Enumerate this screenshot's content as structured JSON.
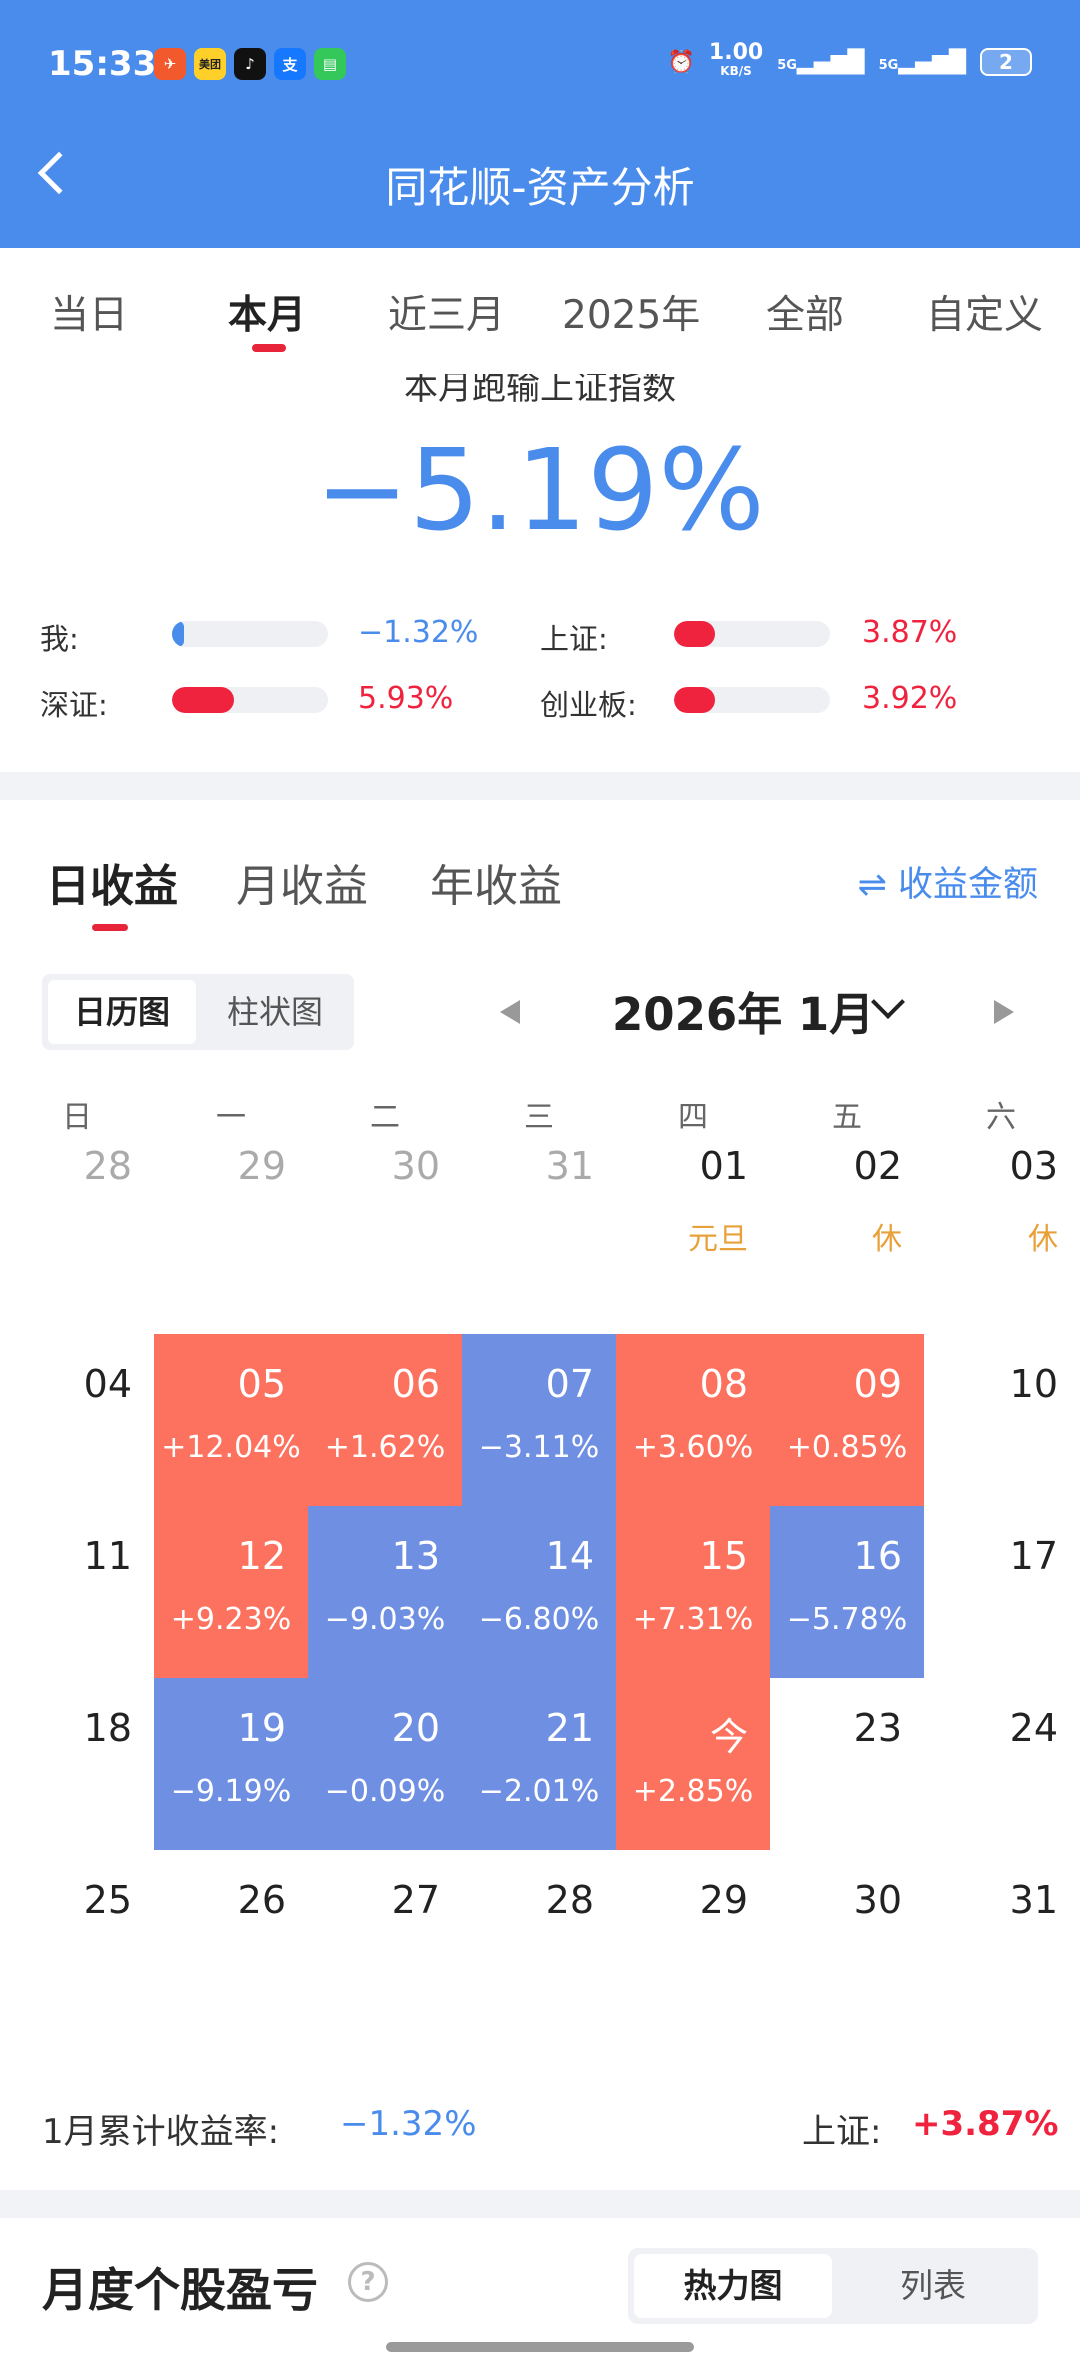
{
  "status": {
    "time": "15:33",
    "net_speed": "1.00",
    "net_unit": "KB/S",
    "sig1": "5G",
    "sig2": "5G",
    "battery": "2",
    "app_icons": [
      {
        "name": "feishu-icon",
        "color": "#f25a2e",
        "glyph": "✈"
      },
      {
        "name": "meituan-icon",
        "color": "#ffd02a",
        "glyph": "美团"
      },
      {
        "name": "douyin-icon",
        "color": "#111111",
        "glyph": "♪"
      },
      {
        "name": "alipay-icon",
        "color": "#1677ff",
        "glyph": "支"
      },
      {
        "name": "messages-icon",
        "color": "#34c759",
        "glyph": "▤"
      }
    ]
  },
  "header": {
    "title": "同花顺-资产分析"
  },
  "tabs": [
    "当日",
    "本月",
    "近三月",
    "2025年",
    "全部",
    "自定义"
  ],
  "summary": {
    "heading": "本月跑输上证指数",
    "value": "−5.19%",
    "rows": [
      {
        "label": "我:",
        "pct": "−1.32%",
        "level": 0.08,
        "color": "#4a8cec"
      },
      {
        "label": "上证:",
        "pct": "3.87%",
        "level": 0.26,
        "color": "#f0233f"
      },
      {
        "label": "深证:",
        "pct": "5.93%",
        "level": 0.4,
        "color": "#f0233f"
      },
      {
        "label": "创业板:",
        "pct": "3.92%",
        "level": 0.26,
        "color": "#f0233f"
      }
    ]
  },
  "profit": {
    "tabs": [
      "日收益",
      "月收益",
      "年收益"
    ],
    "amount_label": "⇌ 收益金额",
    "view_tabs": [
      "日历图",
      "柱状图"
    ],
    "month_label": "2026年 1月",
    "weekdays": [
      "日",
      "一",
      "二",
      "三",
      "四",
      "五",
      "六"
    ],
    "weeks": [
      [
        {
          "d": "28",
          "o": true
        },
        {
          "d": "29",
          "o": true
        },
        {
          "d": "30",
          "o": true
        },
        {
          "d": "31",
          "o": true
        },
        {
          "d": "01",
          "h": "元旦"
        },
        {
          "d": "02",
          "h": "休"
        },
        {
          "d": "03",
          "h": "休"
        }
      ],
      [
        {
          "d": "04"
        },
        {
          "d": "05",
          "r": "+12.04%",
          "t": "up"
        },
        {
          "d": "06",
          "r": "+1.62%",
          "t": "up"
        },
        {
          "d": "07",
          "r": "−3.11%",
          "t": "dn"
        },
        {
          "d": "08",
          "r": "+3.60%",
          "t": "up"
        },
        {
          "d": "09",
          "r": "+0.85%",
          "t": "up"
        },
        {
          "d": "10"
        }
      ],
      [
        {
          "d": "11"
        },
        {
          "d": "12",
          "r": "+9.23%",
          "t": "up"
        },
        {
          "d": "13",
          "r": "−9.03%",
          "t": "dn"
        },
        {
          "d": "14",
          "r": "−6.80%",
          "t": "dn"
        },
        {
          "d": "15",
          "r": "+7.31%",
          "t": "up"
        },
        {
          "d": "16",
          "r": "−5.78%",
          "t": "dn"
        },
        {
          "d": "17"
        }
      ],
      [
        {
          "d": "18"
        },
        {
          "d": "19",
          "r": "−9.19%",
          "t": "dn"
        },
        {
          "d": "20",
          "r": "−0.09%",
          "t": "dn"
        },
        {
          "d": "21",
          "r": "−2.01%",
          "t": "dn"
        },
        {
          "d": "今",
          "r": "+2.85%",
          "t": "up"
        },
        {
          "d": "23"
        },
        {
          "d": "24"
        }
      ],
      [
        {
          "d": "25"
        },
        {
          "d": "26"
        },
        {
          "d": "27"
        },
        {
          "d": "28"
        },
        {
          "d": "29"
        },
        {
          "d": "30"
        },
        {
          "d": "31"
        }
      ]
    ],
    "cum_label": "1月累计收益率:",
    "cum_value": "−1.32%",
    "sh_label": "上证:",
    "sh_value": "+3.87%"
  },
  "monthly": {
    "title": "月度个股盈亏",
    "help": "?",
    "view_tabs": [
      "热力图",
      "列表"
    ]
  }
}
